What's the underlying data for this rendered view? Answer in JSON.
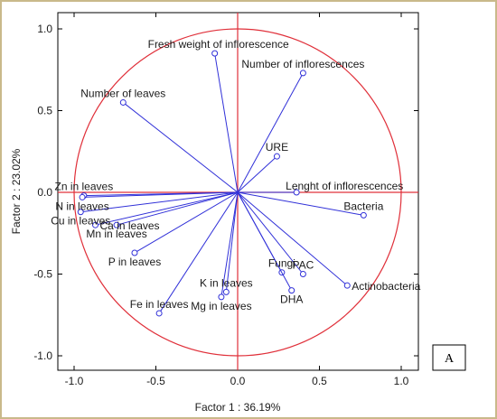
{
  "chart_data": {
    "type": "scatter",
    "subtype": "pca-loading-plot",
    "xlabel": "Factor 1 : 36.19%",
    "ylabel": "Factor 2 : 23.02%",
    "xlim": [
      -1.1,
      1.1
    ],
    "ylim": [
      -1.1,
      1.1
    ],
    "xticks": [
      "-1.0",
      "-0.5",
      "0.0",
      "0.5",
      "1.0"
    ],
    "yticks": [
      "1.0",
      "0.5",
      "0.0",
      "-0.5",
      "-1.0"
    ],
    "xtick_values": [
      -1.0,
      -0.5,
      0.0,
      0.5,
      1.0
    ],
    "ytick_values": [
      1.0,
      0.5,
      0.0,
      -0.5,
      -1.0
    ],
    "unit_circle": true,
    "panel_label": "A",
    "colors": {
      "vectors": "#3030d8",
      "circle": "#e0303a",
      "axes": "#e0303a"
    },
    "points": [
      {
        "label": "Fresh weight of inflorescence",
        "x": -0.14,
        "y": 0.85,
        "anchor": "end-up"
      },
      {
        "label": "Number of inflorescences",
        "x": 0.4,
        "y": 0.73,
        "anchor": "up"
      },
      {
        "label": "Number of leaves",
        "x": -0.7,
        "y": 0.55,
        "anchor": "up"
      },
      {
        "label": "URE",
        "x": 0.24,
        "y": 0.22,
        "anchor": "up"
      },
      {
        "label": "Lenght of inflorescences",
        "x": 0.36,
        "y": 0.0,
        "anchor": "right-up"
      },
      {
        "label": "Bacteria",
        "x": 0.77,
        "y": -0.14,
        "anchor": "up"
      },
      {
        "label": "Zn in leaves",
        "x": -0.94,
        "y": -0.02,
        "anchor": "up"
      },
      {
        "label": "N in leaves",
        "x": -0.95,
        "y": -0.03,
        "anchor": "down"
      },
      {
        "label": "Cu in leaves",
        "x": -0.96,
        "y": -0.12,
        "anchor": "down"
      },
      {
        "label": "Ca in leaves",
        "x": -0.87,
        "y": -0.2,
        "anchor": "right"
      },
      {
        "label": "Mn in leaves",
        "x": -0.74,
        "y": -0.2,
        "anchor": "down"
      },
      {
        "label": "P in leaves",
        "x": -0.63,
        "y": -0.37,
        "anchor": "down"
      },
      {
        "label": "Fe in leaves",
        "x": -0.48,
        "y": -0.74,
        "anchor": "up"
      },
      {
        "label": "K in leaves",
        "x": -0.07,
        "y": -0.61,
        "anchor": "up"
      },
      {
        "label": "Mg in leaves",
        "x": -0.1,
        "y": -0.64,
        "anchor": "down"
      },
      {
        "label": "Fungi",
        "x": 0.27,
        "y": -0.49,
        "anchor": "up"
      },
      {
        "label": "PAC",
        "x": 0.4,
        "y": -0.5,
        "anchor": "up"
      },
      {
        "label": "DHA",
        "x": 0.33,
        "y": -0.6,
        "anchor": "down"
      },
      {
        "label": "Actinobacteria",
        "x": 0.67,
        "y": -0.57,
        "anchor": "right"
      }
    ]
  }
}
